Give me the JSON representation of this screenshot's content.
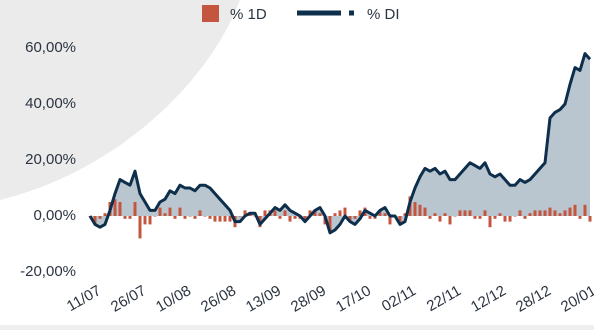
{
  "chart_data": {
    "type": "combo",
    "legend": "top",
    "ylim": [
      -22,
      68
    ],
    "yticks": [
      {
        "value": -20,
        "label": "-20,00%"
      },
      {
        "value": 0,
        "label": "0,00%"
      },
      {
        "value": 20,
        "label": "20,00%"
      },
      {
        "value": 40,
        "label": "40,00%"
      },
      {
        "value": 60,
        "label": "60,00%"
      }
    ],
    "categories": [
      "11/07",
      null,
      null,
      null,
      null,
      null,
      null,
      null,
      null,
      "26/07",
      null,
      null,
      null,
      null,
      null,
      null,
      null,
      null,
      "10/08",
      null,
      null,
      null,
      null,
      null,
      null,
      null,
      null,
      "26/08",
      null,
      null,
      null,
      null,
      null,
      null,
      null,
      null,
      "13/09",
      null,
      null,
      null,
      null,
      null,
      null,
      null,
      null,
      "28/09",
      null,
      null,
      null,
      null,
      null,
      null,
      null,
      null,
      "17/10",
      null,
      null,
      null,
      null,
      null,
      null,
      null,
      null,
      "02/11",
      null,
      null,
      null,
      null,
      null,
      null,
      null,
      null,
      "22/11",
      null,
      null,
      null,
      null,
      null,
      null,
      null,
      null,
      "12/12",
      null,
      null,
      null,
      null,
      null,
      null,
      null,
      null,
      "28/12",
      null,
      null,
      null,
      null,
      null,
      null,
      null,
      null,
      "20/01",
      null
    ],
    "series": [
      {
        "name": "% 1D",
        "type": "bar",
        "color": "#c4553f",
        "values": [
          0,
          -3,
          -1,
          1,
          5,
          6,
          5,
          -1,
          -1,
          5,
          -8,
          -3,
          -3,
          0,
          3,
          1,
          3,
          -1,
          3,
          -1,
          0,
          -1,
          2,
          0,
          -1,
          -2,
          -2,
          -2,
          -2,
          -4,
          0,
          2,
          1,
          0,
          -4,
          2,
          2,
          2,
          -1,
          2,
          -2,
          -1,
          -1,
          -2,
          2,
          2,
          1,
          -3,
          -6,
          1,
          2,
          3,
          -2,
          -1,
          2,
          3,
          -1,
          -1,
          2,
          1,
          -3,
          0,
          -3,
          1,
          7,
          5,
          4,
          3,
          -1,
          1,
          -2,
          1,
          -3,
          0,
          2,
          2,
          2,
          -1,
          -1,
          2,
          -4,
          -1,
          1,
          -2,
          -2,
          0,
          2,
          -1,
          1,
          2,
          2,
          2,
          3,
          2,
          1,
          2,
          3,
          4,
          -1,
          4,
          -2
        ]
      },
      {
        "name": "% DI",
        "type": "area",
        "color": "#0e2f4c",
        "fill": "#b9c6cf",
        "values": [
          0,
          -3,
          -4,
          -3,
          2,
          8,
          13,
          12,
          11,
          16,
          8,
          5,
          2,
          2,
          5,
          6,
          9,
          8,
          11,
          10,
          10,
          9,
          11,
          11,
          10,
          8,
          6,
          4,
          2,
          -2,
          -2,
          0,
          1,
          1,
          -3,
          -1,
          1,
          3,
          2,
          4,
          2,
          1,
          0,
          -2,
          0,
          2,
          3,
          0,
          -6,
          -5,
          -3,
          0,
          -2,
          -3,
          -1,
          2,
          1,
          0,
          2,
          3,
          0,
          0,
          -3,
          -2,
          5,
          10,
          14,
          17,
          16,
          17,
          15,
          16,
          13,
          13,
          15,
          17,
          19,
          18,
          17,
          19,
          15,
          14,
          15,
          13,
          11,
          11,
          13,
          12,
          13,
          15,
          17,
          19,
          35,
          37,
          38,
          40,
          47,
          53,
          52,
          58,
          56
        ]
      }
    ]
  }
}
